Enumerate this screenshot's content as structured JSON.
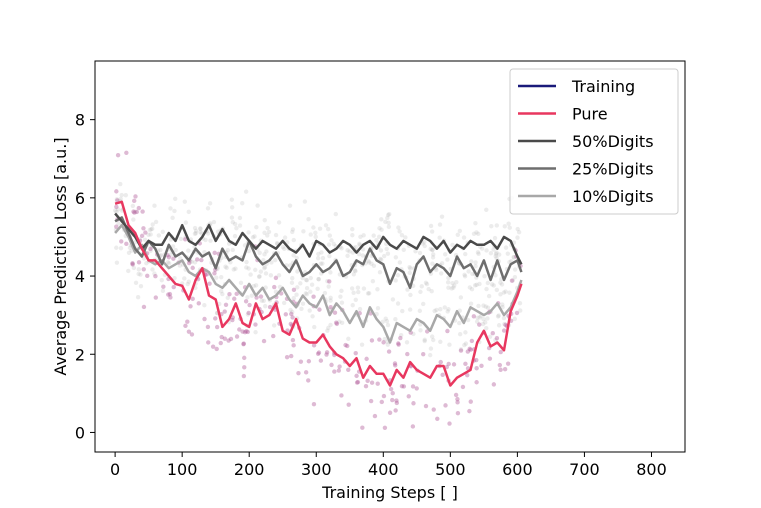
{
  "chart_data": {
    "type": "line",
    "xlabel": "Training Steps [ ]",
    "ylabel": "Average Prediction Loss [a.u.]",
    "xlim": [
      -30,
      850
    ],
    "ylim": [
      -0.5,
      9.5
    ],
    "xticks": [
      0,
      100,
      200,
      300,
      400,
      500,
      600,
      700,
      800
    ],
    "yticks": [
      0,
      2,
      4,
      6,
      8
    ],
    "grid": false,
    "legend_position": "top-right",
    "series": [
      {
        "name": "Training",
        "color": "#1a1a7a",
        "x": [],
        "y": []
      },
      {
        "name": "Pure",
        "color": "#e8375f",
        "x": [
          0,
          10,
          20,
          30,
          40,
          50,
          60,
          70,
          80,
          90,
          100,
          110,
          120,
          130,
          140,
          150,
          160,
          170,
          180,
          190,
          200,
          210,
          220,
          230,
          240,
          250,
          260,
          270,
          280,
          290,
          300,
          310,
          320,
          330,
          340,
          350,
          360,
          370,
          380,
          390,
          400,
          410,
          420,
          430,
          440,
          450,
          460,
          470,
          480,
          490,
          500,
          510,
          520,
          530,
          540,
          550,
          560,
          570,
          580,
          590,
          600,
          606
        ],
        "y": [
          5.85,
          5.9,
          5.3,
          5.1,
          4.7,
          4.4,
          4.4,
          4.2,
          4.0,
          3.8,
          3.75,
          3.4,
          3.9,
          4.2,
          3.5,
          3.4,
          2.7,
          2.9,
          3.3,
          2.8,
          2.7,
          3.3,
          2.9,
          3.0,
          3.3,
          2.6,
          2.5,
          2.9,
          2.4,
          2.3,
          2.3,
          2.5,
          2.2,
          2.0,
          1.9,
          1.7,
          1.9,
          1.4,
          1.7,
          1.5,
          1.5,
          1.2,
          1.6,
          1.4,
          1.8,
          1.6,
          1.5,
          1.4,
          1.7,
          1.7,
          1.2,
          1.4,
          1.5,
          1.6,
          2.3,
          2.6,
          2.2,
          2.3,
          2.1,
          3.1,
          3.5,
          3.8
        ]
      },
      {
        "name": "50%Digits",
        "color": "#4a4a4a",
        "x": [
          0,
          10,
          20,
          30,
          40,
          50,
          60,
          70,
          80,
          90,
          100,
          110,
          120,
          130,
          140,
          150,
          160,
          170,
          180,
          190,
          200,
          210,
          220,
          230,
          240,
          250,
          260,
          270,
          280,
          290,
          300,
          310,
          320,
          330,
          340,
          350,
          360,
          370,
          380,
          390,
          400,
          410,
          420,
          430,
          440,
          450,
          460,
          470,
          480,
          490,
          500,
          510,
          520,
          530,
          540,
          550,
          560,
          570,
          580,
          590,
          600,
          606
        ],
        "y": [
          5.6,
          5.4,
          5.2,
          5.0,
          4.7,
          4.9,
          4.8,
          4.8,
          5.1,
          4.9,
          5.3,
          4.9,
          4.8,
          5.0,
          5.3,
          4.9,
          5.2,
          4.9,
          4.8,
          5.1,
          4.9,
          4.7,
          4.9,
          4.8,
          4.7,
          4.9,
          4.7,
          4.6,
          4.8,
          4.5,
          4.9,
          4.8,
          4.6,
          4.7,
          4.9,
          4.8,
          4.6,
          4.8,
          4.9,
          4.7,
          5.0,
          4.8,
          4.7,
          4.9,
          4.8,
          4.7,
          5.0,
          4.9,
          4.7,
          4.9,
          4.6,
          4.8,
          4.7,
          4.9,
          4.8,
          4.8,
          4.9,
          4.7,
          5.0,
          4.9,
          4.5,
          4.3
        ]
      },
      {
        "name": "25%Digits",
        "color": "#6e6e6e",
        "x": [
          0,
          10,
          20,
          30,
          40,
          50,
          60,
          70,
          80,
          90,
          100,
          110,
          120,
          130,
          140,
          150,
          160,
          170,
          180,
          190,
          200,
          210,
          220,
          230,
          240,
          250,
          260,
          270,
          280,
          290,
          300,
          310,
          320,
          330,
          340,
          350,
          360,
          370,
          380,
          390,
          400,
          410,
          420,
          430,
          440,
          450,
          460,
          470,
          480,
          490,
          500,
          510,
          520,
          530,
          540,
          550,
          560,
          570,
          580,
          590,
          600,
          606
        ],
        "y": [
          5.4,
          5.5,
          5.1,
          4.7,
          4.5,
          4.9,
          4.7,
          4.3,
          4.8,
          4.5,
          4.6,
          4.4,
          4.7,
          4.5,
          4.6,
          4.2,
          4.7,
          4.4,
          4.5,
          4.4,
          4.9,
          4.5,
          4.3,
          4.4,
          4.6,
          4.3,
          4.1,
          4.4,
          4.0,
          4.1,
          4.3,
          4.1,
          4.2,
          4.4,
          4.0,
          4.1,
          4.4,
          4.3,
          4.7,
          4.4,
          4.3,
          3.8,
          4.2,
          4.1,
          3.7,
          4.3,
          4.5,
          4.1,
          4.3,
          4.2,
          4.0,
          4.5,
          4.2,
          4.3,
          4.0,
          4.4,
          3.9,
          4.4,
          3.9,
          4.3,
          4.4,
          4.1
        ]
      },
      {
        "name": "10%Digits",
        "color": "#a8a8a8",
        "x": [
          0,
          10,
          20,
          30,
          40,
          50,
          60,
          70,
          80,
          90,
          100,
          110,
          120,
          130,
          140,
          150,
          160,
          170,
          180,
          190,
          200,
          210,
          220,
          230,
          240,
          250,
          260,
          270,
          280,
          290,
          300,
          310,
          320,
          330,
          340,
          350,
          360,
          370,
          380,
          390,
          400,
          410,
          420,
          430,
          440,
          450,
          460,
          470,
          480,
          490,
          500,
          510,
          520,
          530,
          540,
          550,
          560,
          570,
          580,
          590,
          600,
          606
        ],
        "y": [
          5.1,
          5.3,
          5.0,
          4.6,
          4.8,
          4.4,
          4.3,
          4.4,
          4.2,
          4.3,
          4.4,
          4.1,
          4.0,
          4.2,
          4.1,
          3.8,
          3.7,
          3.9,
          3.7,
          3.5,
          3.8,
          3.5,
          3.7,
          3.4,
          3.5,
          3.7,
          3.4,
          3.2,
          3.5,
          3.3,
          3.2,
          3.5,
          3.0,
          3.3,
          3.1,
          2.8,
          3.1,
          2.7,
          3.2,
          2.9,
          2.7,
          2.3,
          2.8,
          2.7,
          2.6,
          2.9,
          2.8,
          2.6,
          3.0,
          2.9,
          2.7,
          3.1,
          2.8,
          3.2,
          3.1,
          3.0,
          3.1,
          3.3,
          3.0,
          3.2,
          3.6,
          3.9
        ]
      }
    ],
    "scatter": {
      "pure_color": "#b05a98",
      "gray_color": "#aaaaaa"
    }
  }
}
